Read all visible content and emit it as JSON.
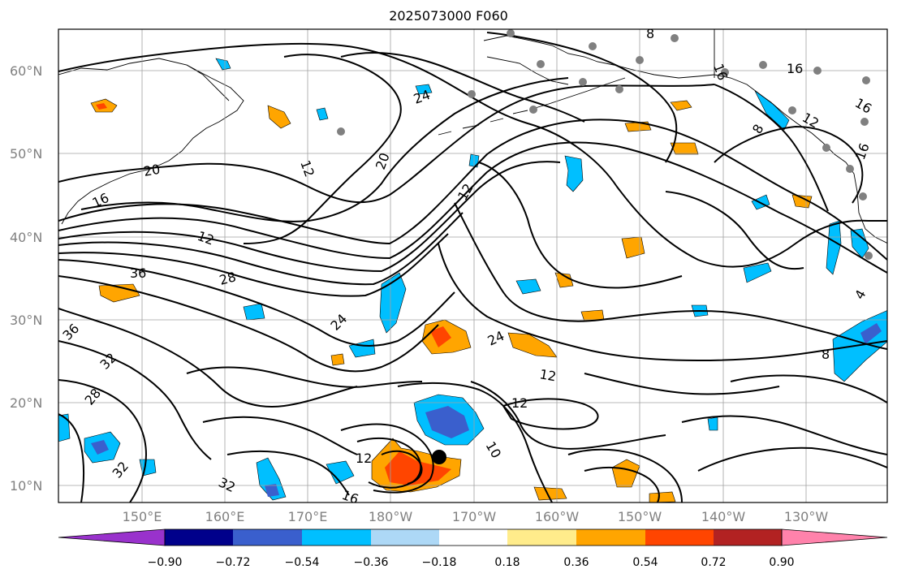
{
  "title": "2025073000 F060",
  "lat_labels": [
    "60°N",
    "50°N",
    "40°N",
    "30°N",
    "20°N",
    "10°N"
  ],
  "lon_labels": [
    "150°E",
    "160°E",
    "170°E",
    "180°W",
    "170°W",
    "160°W",
    "150°W",
    "140°W",
    "130°W"
  ],
  "contour_labels": [
    "8",
    "16",
    "16",
    "16",
    "12",
    "16",
    "8",
    "24",
    "20",
    "12",
    "20",
    "16",
    "12",
    "12",
    "36",
    "28",
    "36",
    "24",
    "24",
    "32",
    "28",
    "12",
    "12",
    "12",
    "32",
    "32",
    "16",
    "10",
    "8",
    "4"
  ],
  "colorbar": {
    "ticks": [
      "−0.90",
      "−0.72",
      "−0.54",
      "−0.36",
      "−0.18",
      "0.18",
      "0.36",
      "0.54",
      "0.72",
      "0.90"
    ],
    "colors": [
      "#9932cc",
      "#00008b",
      "#3a5fcd",
      "#00bfff",
      "#add8f6",
      "#ffffff",
      "#ffec8b",
      "#ffa500",
      "#ff4500",
      "#b22222",
      "#ff82ab"
    ]
  },
  "colors": {
    "coast": "#000000",
    "grid": "#a0a0a0",
    "contour": "#000000",
    "station": "#808080"
  }
}
